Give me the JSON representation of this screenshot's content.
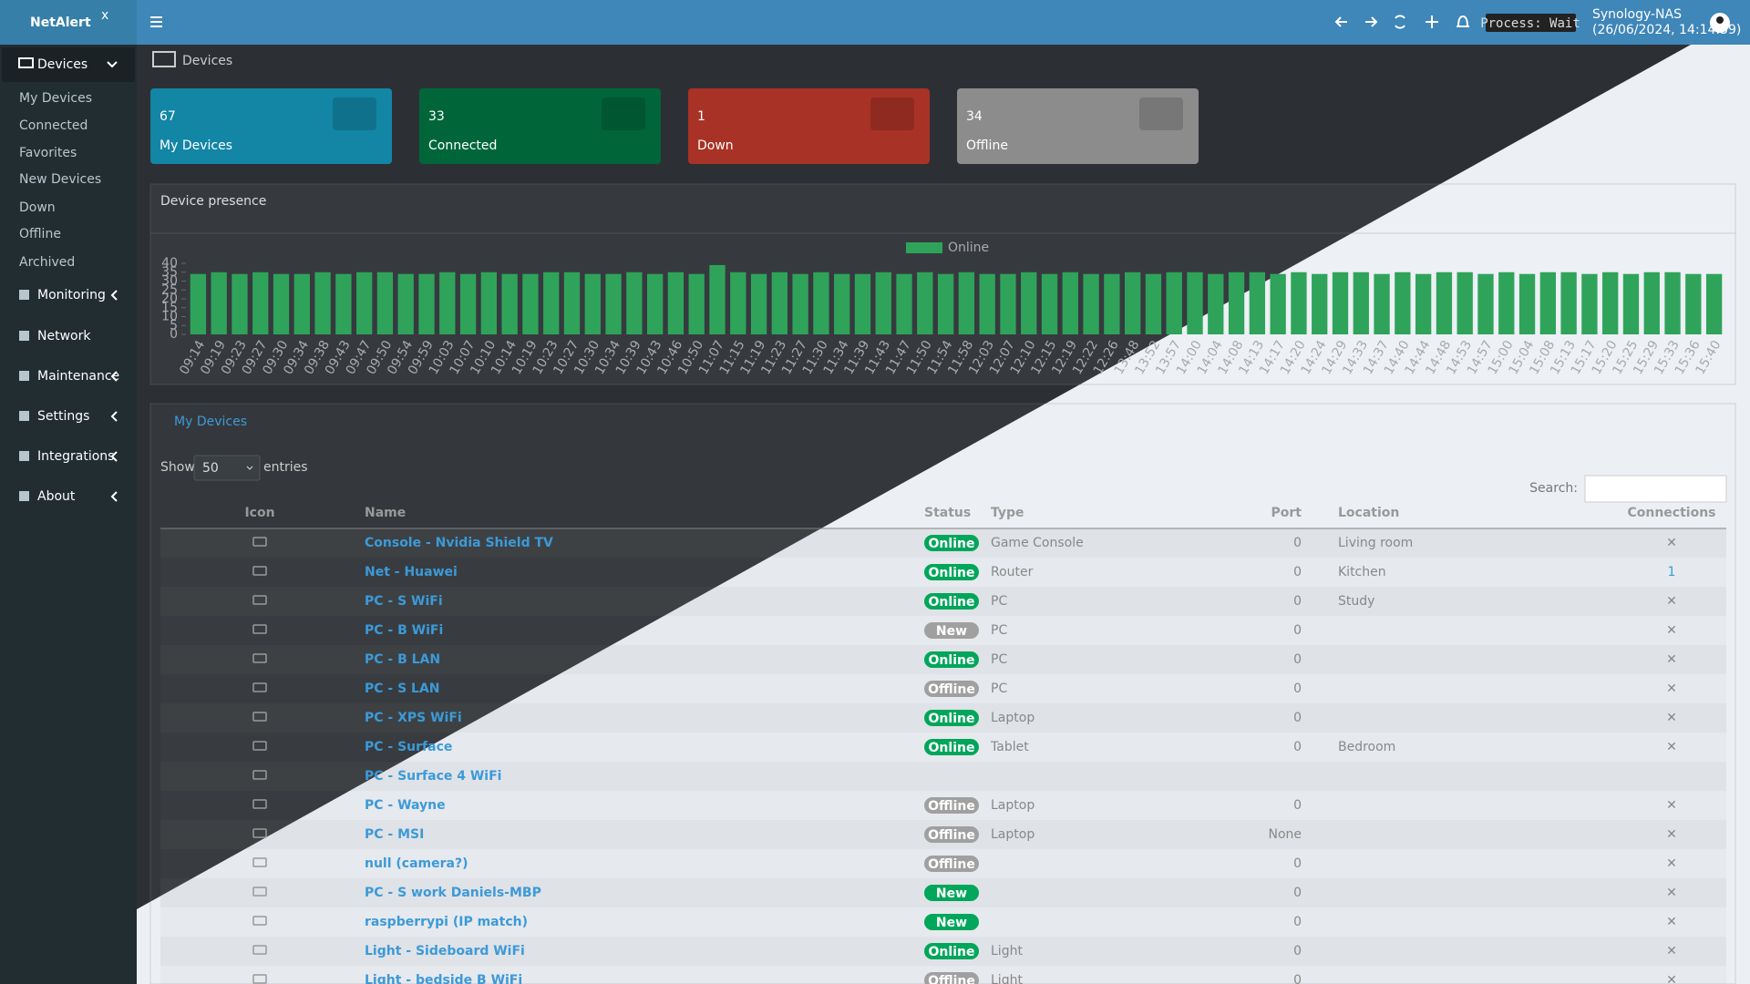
{
  "header": {
    "brand": "NetAlert",
    "brand_sup": "x",
    "process": "Process: Wait",
    "host": "Synology-NAS",
    "datetime": "(26/06/2024, 14:14:59)"
  },
  "sidebar": {
    "devices": "Devices",
    "sub": [
      "My Devices",
      "Connected",
      "Favorites",
      "New Devices",
      "Down",
      "Offline",
      "Archived"
    ],
    "menu": [
      "Monitoring",
      "Network",
      "Maintenance",
      "Settings",
      "Integrations",
      "About"
    ]
  },
  "page": {
    "title": "Devices"
  },
  "tiles": [
    {
      "count": 67,
      "label": "My Devices",
      "color": "#1385a5"
    },
    {
      "count": 33,
      "label": "Connected",
      "color": "#00663a"
    },
    {
      "count": 1,
      "label": "Down",
      "color": "#a93226"
    },
    {
      "count": 34,
      "label": "Offline",
      "color": "#8c8c8c"
    }
  ],
  "chart_data": {
    "type": "bar",
    "title": "Device presence",
    "categories": [
      "09:14",
      "09:19",
      "09:23",
      "09:27",
      "09:30",
      "09:34",
      "09:38",
      "09:43",
      "09:47",
      "09:50",
      "09:54",
      "09:59",
      "10:03",
      "10:07",
      "10:10",
      "10:14",
      "10:19",
      "10:23",
      "10:27",
      "10:30",
      "10:34",
      "10:39",
      "10:43",
      "10:46",
      "10:50",
      "11:07",
      "11:15",
      "11:19",
      "11:23",
      "11:27",
      "11:30",
      "11:34",
      "11:39",
      "11:43",
      "11:47",
      "11:50",
      "11:54",
      "11:58",
      "12:03",
      "12:07",
      "12:10",
      "12:15",
      "12:19",
      "12:22",
      "12:26",
      "13:48",
      "13:52",
      "13:57",
      "14:00",
      "14:04",
      "14:08",
      "14:13",
      "14:17",
      "14:20",
      "14:24",
      "14:29",
      "14:33",
      "14:37",
      "14:40",
      "14:44",
      "14:48",
      "14:53",
      "14:57",
      "15:00",
      "15:04",
      "15:08",
      "15:13",
      "15:17",
      "15:20",
      "15:25",
      "15:29",
      "15:33",
      "15:36",
      "15:40"
    ],
    "series": [
      {
        "name": "Online",
        "color": "#2fa35a",
        "values": [
          34,
          35,
          34,
          35,
          34,
          34,
          35,
          34,
          35,
          35,
          34,
          34,
          35,
          34,
          35,
          34,
          34,
          35,
          35,
          34,
          34,
          35,
          34,
          35,
          34,
          39,
          35,
          34,
          35,
          34,
          35,
          34,
          34,
          35,
          34,
          35,
          34,
          35,
          34,
          34,
          35,
          34,
          35,
          34,
          34,
          35,
          34,
          35,
          35,
          34,
          35,
          35,
          34,
          35,
          34,
          35,
          35,
          34,
          35,
          34,
          35,
          35,
          34,
          35,
          34,
          35,
          35,
          34,
          35,
          34,
          35,
          35,
          34,
          34
        ]
      }
    ],
    "ylim": [
      0,
      40
    ],
    "yticks": [
      0,
      5,
      10,
      15,
      20,
      25,
      30,
      35,
      40
    ],
    "legend": "top"
  },
  "table": {
    "title": "My Devices",
    "show": "Show",
    "page_length": 50,
    "entries": "entries",
    "search": "Search:",
    "columns": [
      "Icon",
      "Name",
      "Status",
      "Type",
      "Port",
      "Location",
      "Connections"
    ],
    "rows": [
      {
        "name": "Console - Nvidia Shield TV",
        "status": "Online",
        "status_color": "#00a65a",
        "type": "Game Console",
        "port": 0,
        "location": "Living room",
        "connections": "✕"
      },
      {
        "name": "Net - Huawei",
        "status": "Online",
        "status_color": "#00a65a",
        "type": "Router",
        "port": 0,
        "location": "Kitchen",
        "connections": 1
      },
      {
        "name": "PC - S WiFi",
        "status": "Online",
        "status_color": "#00a65a",
        "type": "PC",
        "port": 0,
        "location": "Study",
        "connections": "✕"
      },
      {
        "name": "PC - B WiFi",
        "status": "New",
        "status_color": "#a0a0a0",
        "type": "PC",
        "port": 0,
        "connections": "✕"
      },
      {
        "name": "PC - B LAN",
        "status": "Online",
        "status_color": "#00a65a",
        "type": "PC",
        "port": 0,
        "connections": "✕"
      },
      {
        "name": "PC - S LAN",
        "status": "Offline",
        "status_color": "#a0a0a0",
        "type": "PC",
        "port": 0,
        "connections": "✕"
      },
      {
        "name": "PC - XPS WiFi",
        "status": "Online",
        "status_color": "#00a65a",
        "type": "Laptop",
        "port": 0,
        "connections": "✕"
      },
      {
        "name": "PC - Surface",
        "status": "Online",
        "status_color": "#00a65a",
        "type": "Tablet",
        "port": 0,
        "location": "Bedroom",
        "connections": "✕"
      },
      {
        "name": "PC - Surface 4 WiFi"
      },
      {
        "name": "PC - Wayne",
        "status": "Offline",
        "status_color": "#a0a0a0",
        "type": "Laptop",
        "port": 0,
        "connections": "✕"
      },
      {
        "name": "PC - MSI",
        "status": "Offline",
        "status_color": "#a0a0a0",
        "type": "Laptop",
        "port": "None",
        "connections": "✕"
      },
      {
        "name": "null (camera?)",
        "status": "Offline",
        "status_color": "#a0a0a0",
        "port": 0,
        "connections": "✕"
      },
      {
        "name": "PC - S work Daniels-MBP",
        "status": "New",
        "status_color": "#00a65a",
        "port": 0,
        "connections": "✕"
      },
      {
        "name": "raspberrypi (IP match)",
        "status": "New",
        "status_color": "#00a65a",
        "port": 0,
        "connections": "✕"
      },
      {
        "name": "Light - Sideboard WiFi",
        "status": "Online",
        "status_color": "#00a65a",
        "type": "Light",
        "port": 0,
        "connections": "✕"
      },
      {
        "name": "Light - bedside B WiFi",
        "status": "Offline",
        "status_color": "#a0a0a0",
        "type": "Light",
        "port": 0,
        "connections": "✕"
      }
    ]
  }
}
